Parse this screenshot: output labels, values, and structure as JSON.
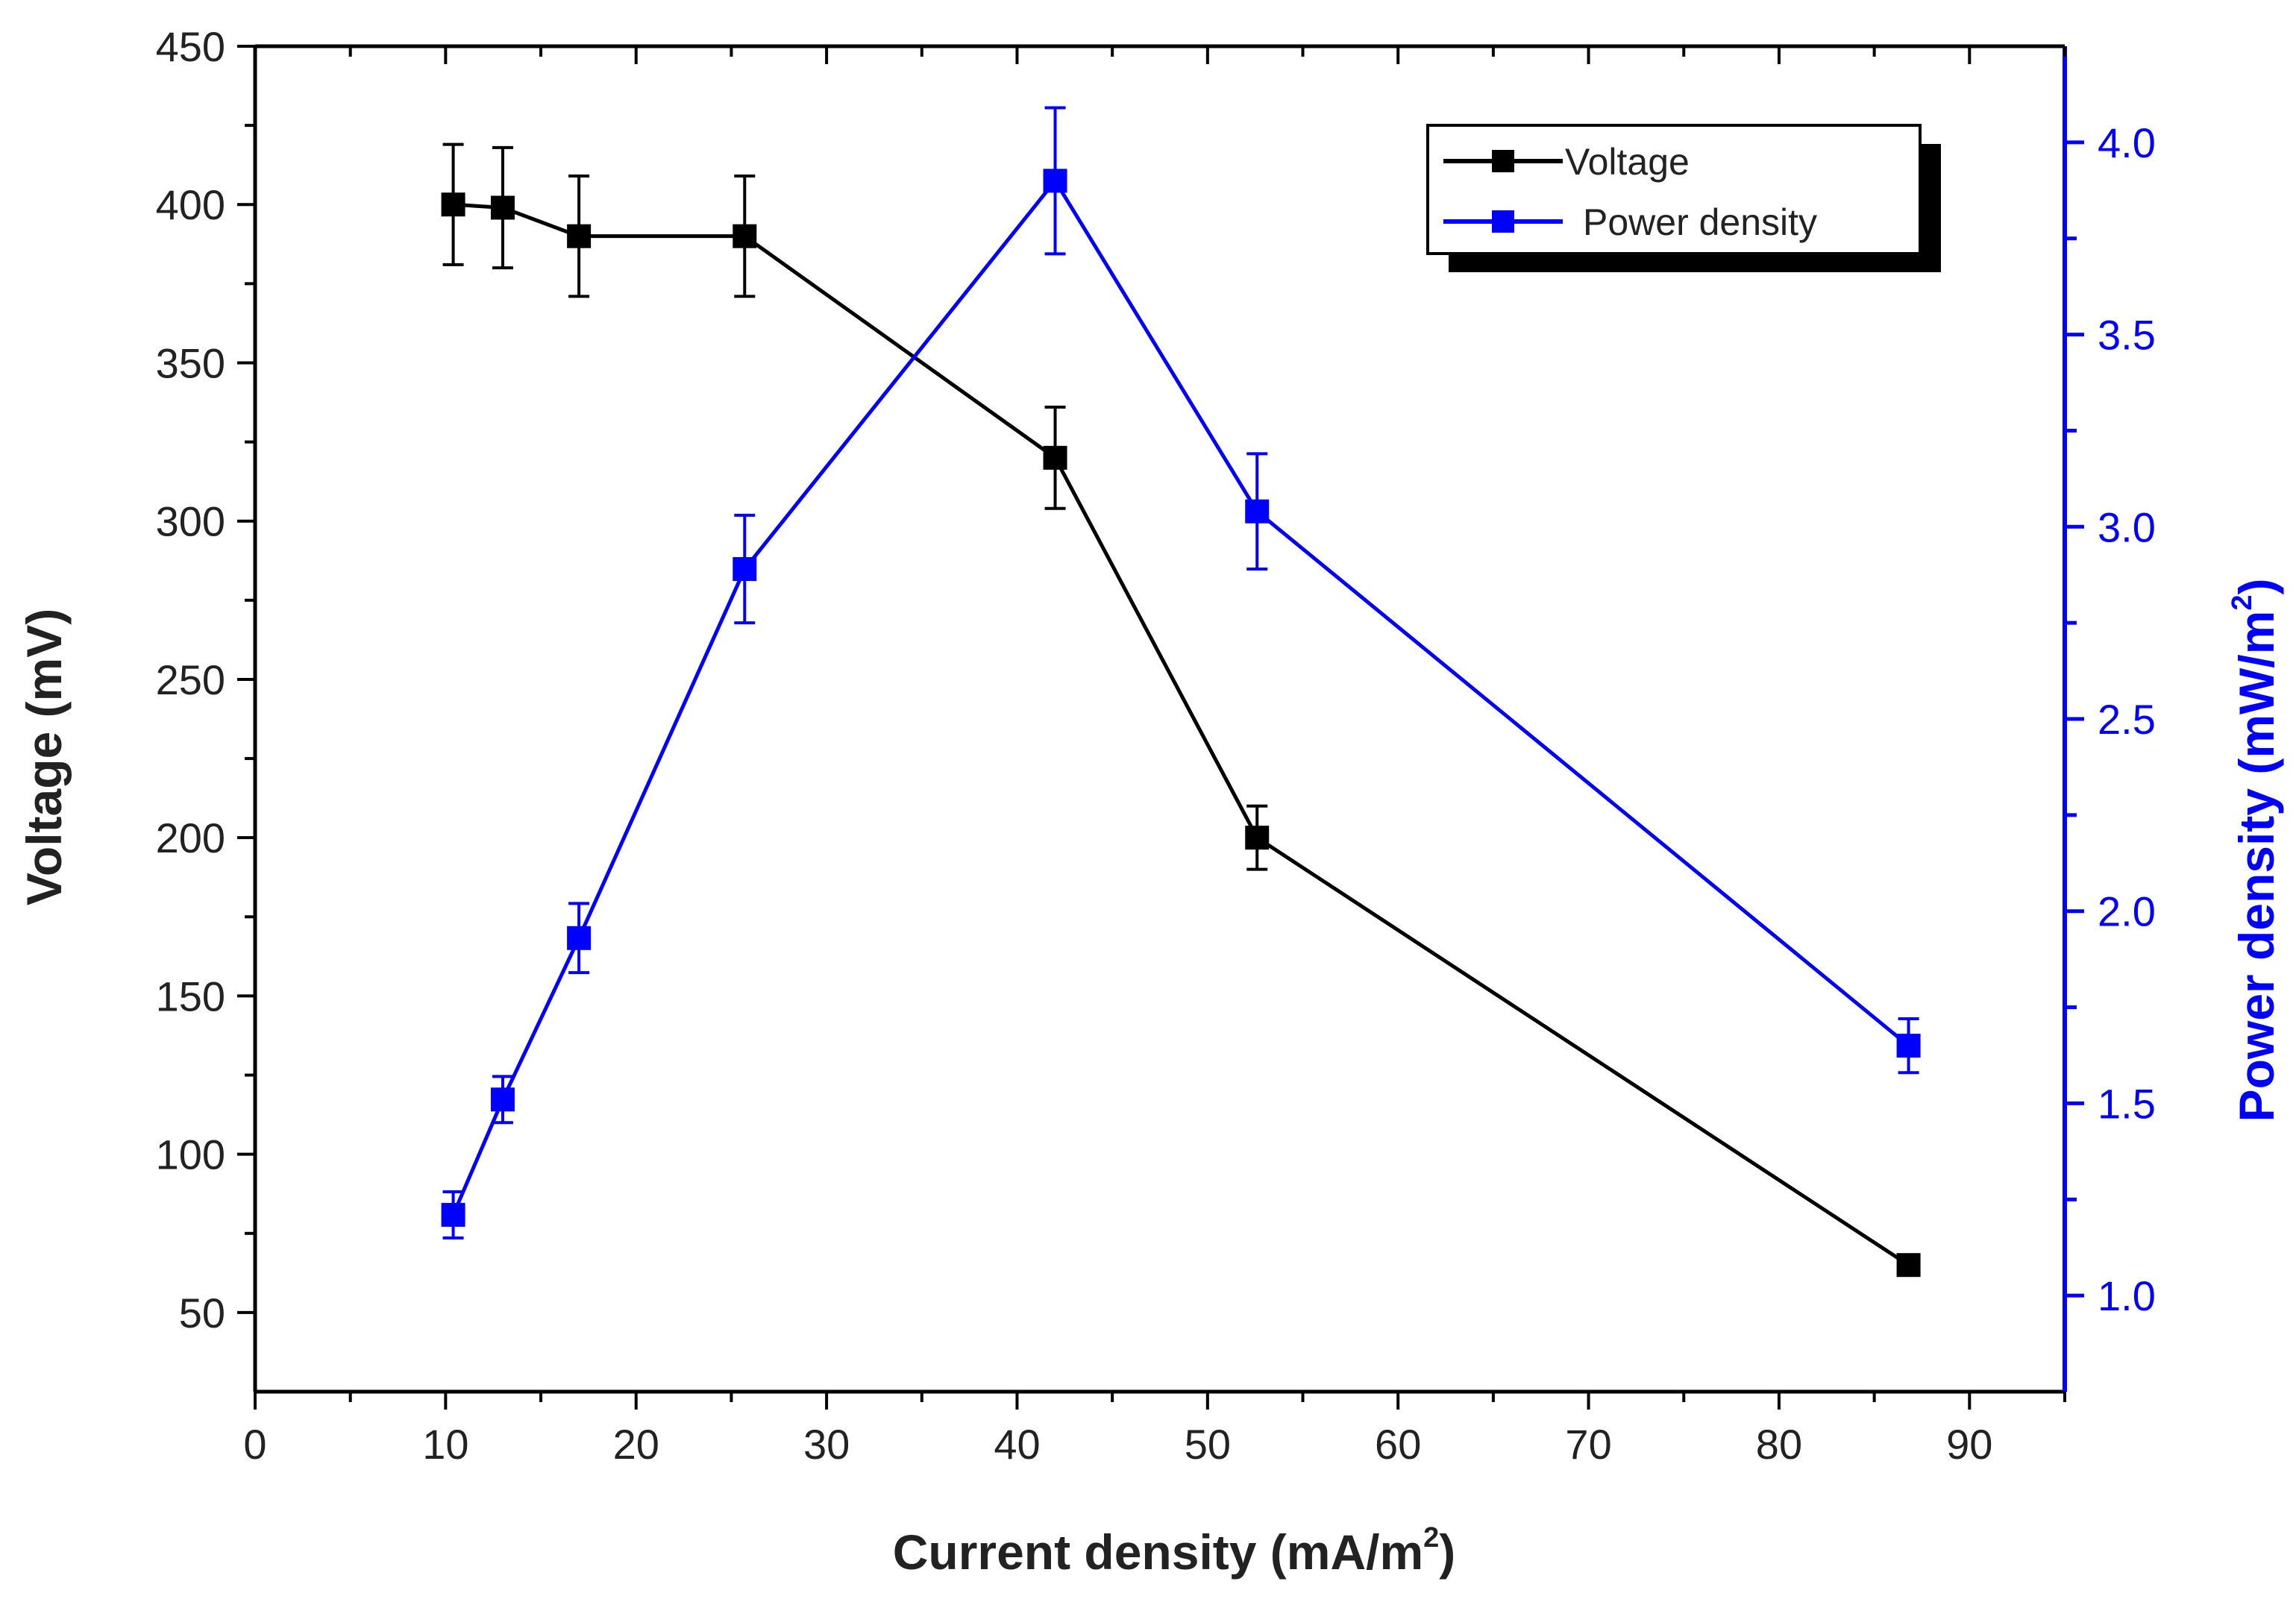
{
  "chart_data": {
    "type": "line",
    "xlabel": "Current density (mA/m",
    "xlabel_sup": "2",
    "xlabel_close": ")",
    "ylabel_left": "Voltage (mV)",
    "ylabel_right": "Power density (mW/m",
    "ylabel_right_sup": "2",
    "ylabel_right_close": ")",
    "xlim": [
      0,
      95
    ],
    "ylim_left": [
      25,
      450
    ],
    "ylim_right": [
      0.75,
      4.25
    ],
    "x_ticks": [
      0,
      10,
      20,
      30,
      40,
      50,
      60,
      70,
      80,
      90
    ],
    "y_left_ticks": [
      50,
      100,
      150,
      200,
      250,
      300,
      350,
      400,
      450
    ],
    "y_right_ticks": [
      "1.0",
      "1.5",
      "2.0",
      "2.5",
      "3.0",
      "3.5",
      "4.0"
    ],
    "legend_position": "top-right",
    "series": [
      {
        "name": "Voltage",
        "axis": "left",
        "color": "#000000",
        "x": [
          10.4,
          13.0,
          17.0,
          25.7,
          42.0,
          52.6,
          86.8
        ],
        "y": [
          400,
          399,
          390,
          390,
          320,
          200,
          65
        ],
        "err": [
          19,
          19,
          19,
          19,
          16,
          10,
          0
        ]
      },
      {
        "name": "Power density",
        "axis": "right",
        "color": "#0000ff",
        "x": [
          10.4,
          13.0,
          17.0,
          25.7,
          42.0,
          52.6,
          86.8
        ],
        "y": [
          1.21,
          1.51,
          1.93,
          2.89,
          3.9,
          3.04,
          1.65
        ],
        "err": [
          0.06,
          0.06,
          0.09,
          0.14,
          0.19,
          0.15,
          0.07
        ]
      }
    ]
  }
}
